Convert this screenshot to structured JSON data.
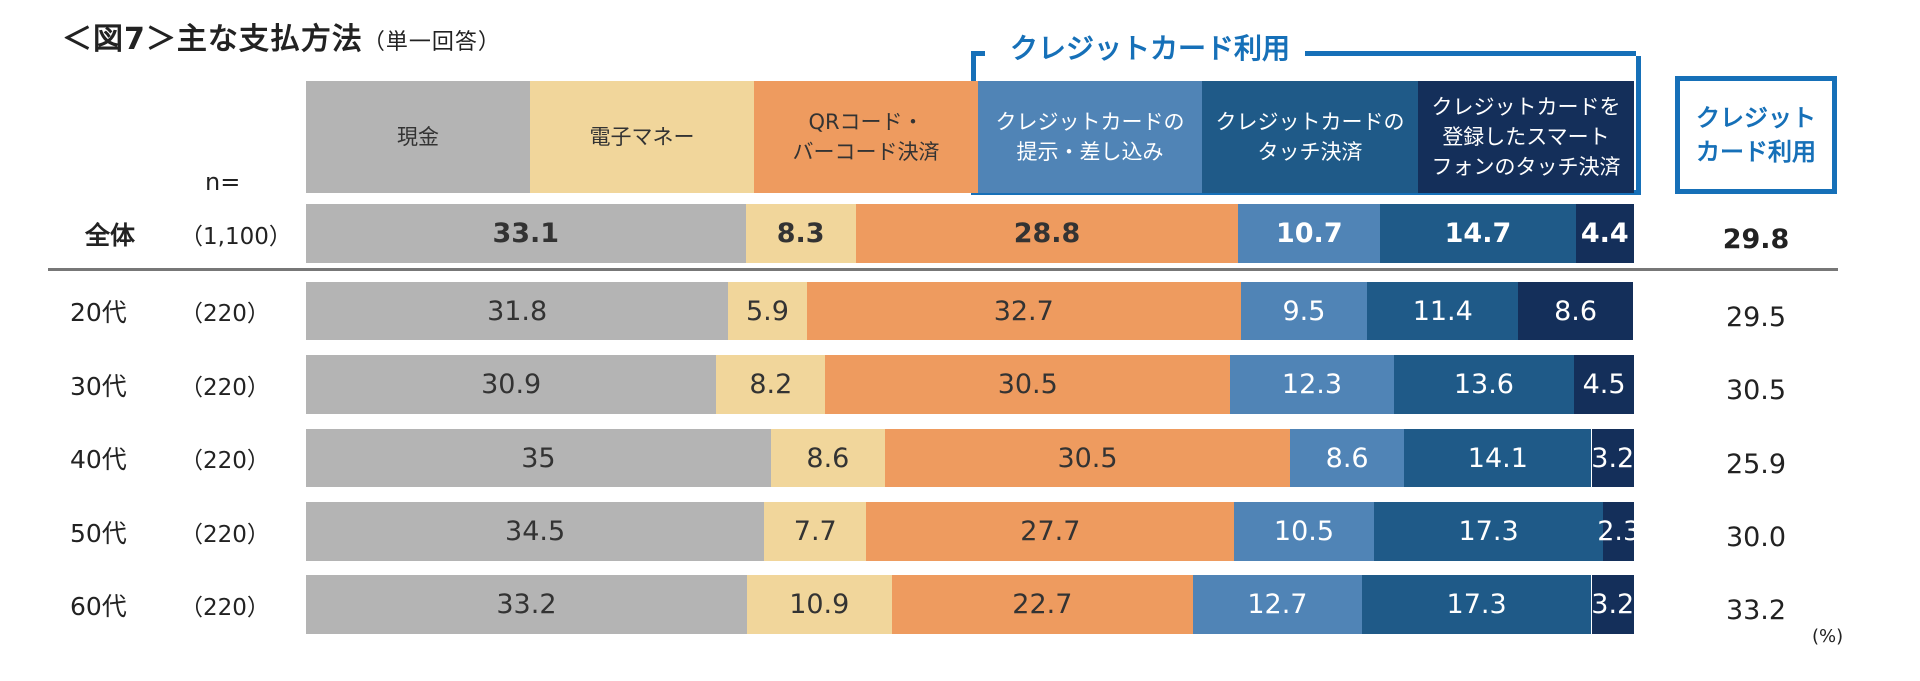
{
  "title": "＜図7＞主な支払方法",
  "subtitle": "（単一回答）",
  "n_label": "n=",
  "bracket_label": "クレジットカード利用",
  "cc_header": [
    "クレジット",
    "カード利用"
  ],
  "unit": "(%)",
  "colors": {
    "cash": "#b4b4b4",
    "emoney": "#f1d69b",
    "qr": "#ee9b5f",
    "cc_present": "#5084b6",
    "cc_touch": "#1f5a88",
    "cc_phone": "#142f5a",
    "bracket": "#1670b8"
  },
  "chart_data": {
    "type": "bar",
    "orientation": "horizontal-stacked-100",
    "series": [
      {
        "name": "現金",
        "header": [
          "現金"
        ],
        "values": [
          33.1,
          31.8,
          30.9,
          35,
          34.5,
          33.2
        ]
      },
      {
        "name": "電子マネー",
        "header": [
          "電子マネー"
        ],
        "values": [
          8.3,
          5.9,
          8.2,
          8.6,
          7.7,
          10.9
        ]
      },
      {
        "name": "QRコード・バーコード決済",
        "header": [
          "QRコード・",
          "バーコード決済"
        ],
        "values": [
          28.8,
          32.7,
          30.5,
          30.5,
          27.7,
          22.7
        ]
      },
      {
        "name": "クレジットカードの提示・差し込み",
        "header": [
          "クレジットカードの",
          "提示・差し込み"
        ],
        "values": [
          10.7,
          9.5,
          12.3,
          8.6,
          10.5,
          12.7
        ]
      },
      {
        "name": "クレジットカードのタッチ決済",
        "header": [
          "クレジットカードの",
          "タッチ決済"
        ],
        "values": [
          14.7,
          11.4,
          13.6,
          14.1,
          17.3,
          17.3
        ]
      },
      {
        "name": "クレジットカードを登録したスマートフォンのタッチ決済",
        "header": [
          "クレジットカードを",
          "登録したスマート",
          "フォンのタッチ決済"
        ],
        "values": [
          4.4,
          8.6,
          4.5,
          3.2,
          2.3,
          3.2
        ]
      }
    ],
    "categories": [
      "全体",
      "20代",
      "30代",
      "40代",
      "50代",
      "60代"
    ],
    "n": [
      "（1,100）",
      "（220）",
      "（220）",
      "（220）",
      "（220）",
      "（220）"
    ],
    "credit_card_total": [
      "29.8",
      "29.5",
      "30.5",
      "25.9",
      "30.0",
      "33.2"
    ],
    "labels": [
      [
        "33.1",
        "8.3",
        "28.8",
        "10.7",
        "14.7",
        "4.4"
      ],
      [
        "31.8",
        "5.9",
        "32.7",
        "9.5",
        "11.4",
        "8.6"
      ],
      [
        "30.9",
        "8.2",
        "30.5",
        "12.3",
        "13.6",
        "4.5"
      ],
      [
        "35",
        "8.6",
        "30.5",
        "8.6",
        "14.1",
        "3.2"
      ],
      [
        "34.5",
        "7.7",
        "27.7",
        "10.5",
        "17.3",
        "2.3"
      ],
      [
        "33.2",
        "10.9",
        "22.7",
        "12.7",
        "17.3",
        "3.2"
      ]
    ],
    "xlim": [
      0,
      100
    ]
  }
}
